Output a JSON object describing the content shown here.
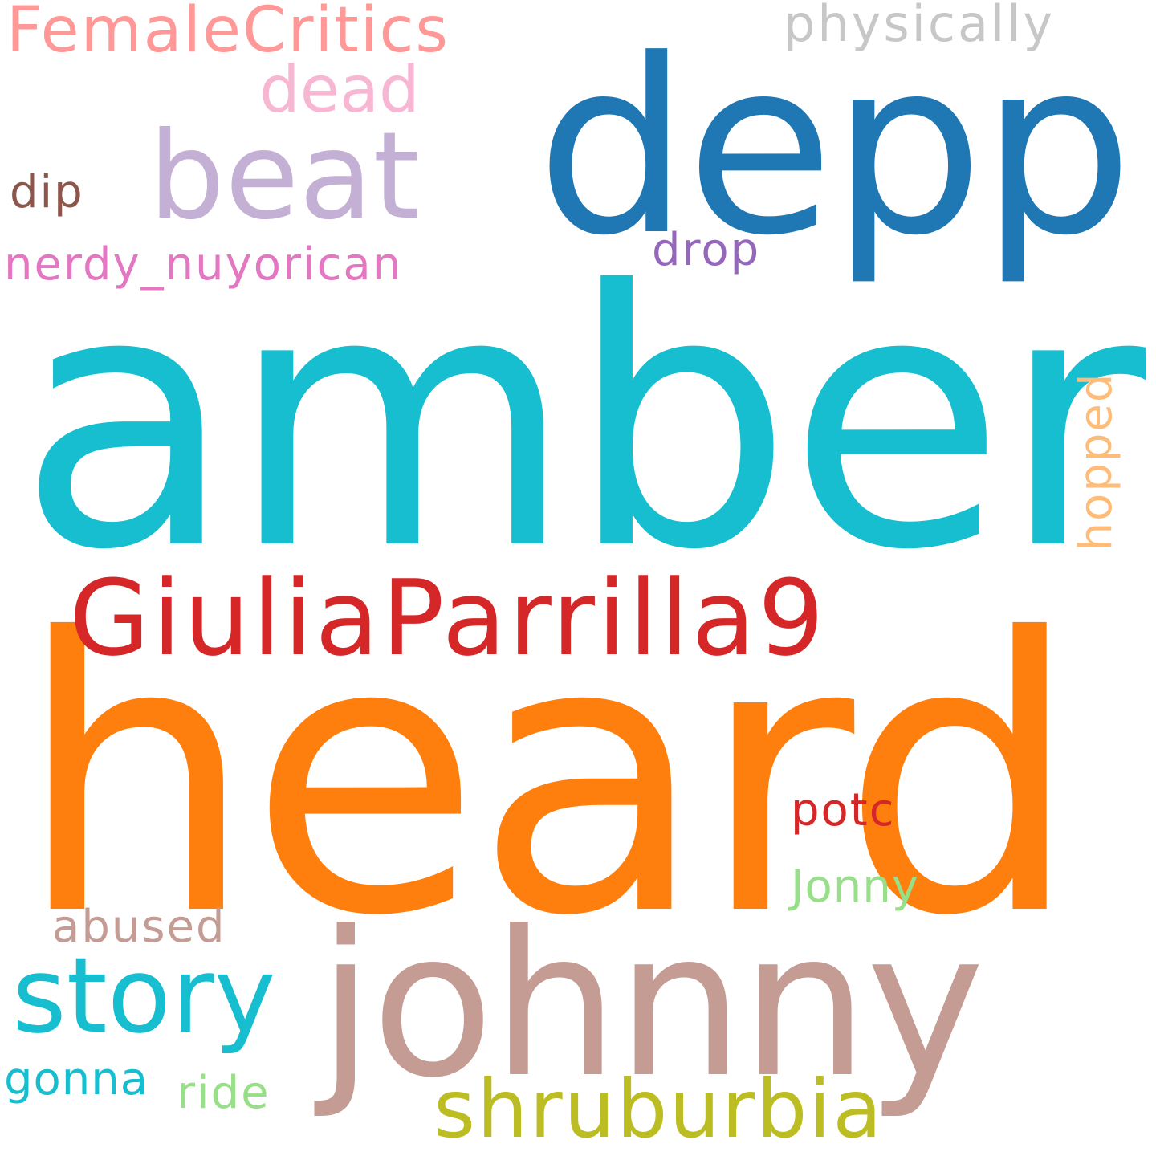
{
  "words": {
    "amber": {
      "text": "amber",
      "color": "#17becf"
    },
    "heard": {
      "text": "heard",
      "color": "#ff7f0e"
    },
    "depp": {
      "text": "depp",
      "color": "#1f77b4"
    },
    "johnny": {
      "text": "johnny",
      "color": "#c49c94"
    },
    "giulia": {
      "text": "GiuliaParrilla9",
      "color": "#d62728"
    },
    "beat": {
      "text": "beat",
      "color": "#c5b0d5"
    },
    "story": {
      "text": "story",
      "color": "#17becf"
    },
    "shrub": {
      "text": "shruburbia",
      "color": "#bcbd22"
    },
    "female": {
      "text": "FemaleCritics",
      "color": "#ff9896"
    },
    "dead": {
      "text": "dead",
      "color": "#f7b6d2"
    },
    "physic": {
      "text": "physically",
      "color": "#c7c7c7"
    },
    "dip": {
      "text": "dip",
      "color": "#8c564b"
    },
    "nerdy": {
      "text": "nerdy_nuyorican",
      "color": "#e377c2"
    },
    "drop": {
      "text": "drop",
      "color": "#9467bd"
    },
    "potc": {
      "text": "potc",
      "color": "#d62728"
    },
    "jonny": {
      "text": "Jonny",
      "color": "#98df8a"
    },
    "abused": {
      "text": "abused",
      "color": "#c49c94"
    },
    "gonna": {
      "text": "gonna",
      "color": "#17becf"
    },
    "ride": {
      "text": "ride",
      "color": "#98df8a"
    },
    "hopped": {
      "text": "hopped",
      "color": "#ffbb78"
    }
  }
}
